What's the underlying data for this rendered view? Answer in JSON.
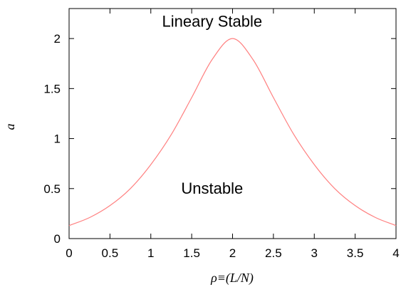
{
  "chart_data": {
    "type": "line",
    "xlabel": "ρ≡(L/N)",
    "ylabel": "a",
    "xlim": [
      0,
      4
    ],
    "ylim": [
      0,
      2.3
    ],
    "grid": false,
    "x_ticks": [
      "0",
      "0.5",
      "1",
      "1.5",
      "2",
      "2.5",
      "3",
      "3.5",
      "4"
    ],
    "y_ticks": [
      "0",
      "0.5",
      "1",
      "1.5",
      "2"
    ],
    "series": [
      {
        "color": "#ff8080",
        "x": [
          0,
          0.25,
          0.5,
          0.75,
          1.0,
          1.25,
          1.5,
          1.75,
          2.0,
          2.25,
          2.5,
          2.75,
          3.0,
          3.25,
          3.5,
          3.75,
          4.0
        ],
        "values": [
          0.13,
          0.21,
          0.33,
          0.5,
          0.74,
          1.04,
          1.41,
          1.79,
          2.0,
          1.79,
          1.41,
          1.04,
          0.74,
          0.5,
          0.33,
          0.21,
          0.13
        ]
      }
    ],
    "annotations": [
      {
        "text": "Lineary Stable",
        "x": 1.75,
        "y": 2.12
      },
      {
        "text": "Unstable",
        "x": 1.75,
        "y": 0.45
      }
    ]
  }
}
